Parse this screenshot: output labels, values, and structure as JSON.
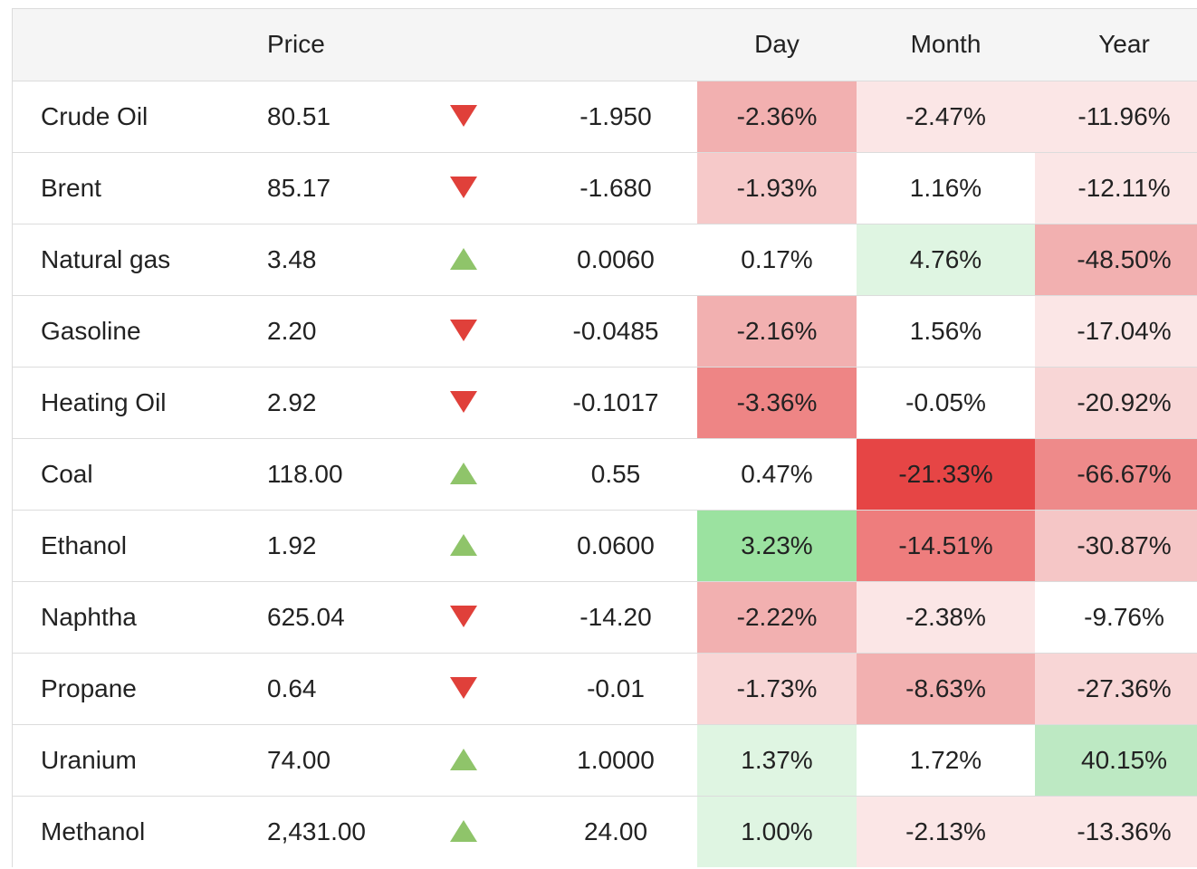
{
  "header": {
    "price": "Price",
    "day": "Day",
    "month": "Month",
    "year": "Year"
  },
  "rows": [
    {
      "name": "Crude Oil",
      "price": "80.51",
      "dir": "down",
      "change": "-1.950",
      "day": {
        "text": "-2.36%",
        "bg": "#f2b0b0"
      },
      "month": {
        "text": "-2.47%",
        "bg": "#fbe6e6"
      },
      "year": {
        "text": "-11.96%",
        "bg": "#fbe6e6"
      }
    },
    {
      "name": "Brent",
      "price": "85.17",
      "dir": "down",
      "change": "-1.680",
      "day": {
        "text": "-1.93%",
        "bg": "#f6c9c9"
      },
      "month": {
        "text": "1.16%",
        "bg": "#ffffff"
      },
      "year": {
        "text": "-12.11%",
        "bg": "#fbe6e6"
      }
    },
    {
      "name": "Natural gas",
      "price": "3.48",
      "dir": "up",
      "change": "0.0060",
      "day": {
        "text": "0.17%",
        "bg": "#ffffff"
      },
      "month": {
        "text": "4.76%",
        "bg": "#dff5e2"
      },
      "year": {
        "text": "-48.50%",
        "bg": "#f2b0b0"
      }
    },
    {
      "name": "Gasoline",
      "price": "2.20",
      "dir": "down",
      "change": "-0.0485",
      "day": {
        "text": "-2.16%",
        "bg": "#f2b0b0"
      },
      "month": {
        "text": "1.56%",
        "bg": "#ffffff"
      },
      "year": {
        "text": "-17.04%",
        "bg": "#fbe6e6"
      }
    },
    {
      "name": "Heating Oil",
      "price": "2.92",
      "dir": "down",
      "change": "-0.1017",
      "day": {
        "text": "-3.36%",
        "bg": "#ee8585"
      },
      "month": {
        "text": "-0.05%",
        "bg": "#ffffff"
      },
      "year": {
        "text": "-20.92%",
        "bg": "#f8d6d6"
      }
    },
    {
      "name": "Coal",
      "price": "118.00",
      "dir": "up",
      "change": "0.55",
      "day": {
        "text": "0.47%",
        "bg": "#ffffff"
      },
      "month": {
        "text": "-21.33%",
        "bg": "#e64545"
      },
      "year": {
        "text": "-66.67%",
        "bg": "#ee8a8a"
      }
    },
    {
      "name": "Ethanol",
      "price": "1.92",
      "dir": "up",
      "change": "0.0600",
      "day": {
        "text": "3.23%",
        "bg": "#9be2a0"
      },
      "month": {
        "text": "-14.51%",
        "bg": "#ee7d7d"
      },
      "year": {
        "text": "-30.87%",
        "bg": "#f5c6c6"
      }
    },
    {
      "name": "Naphtha",
      "price": "625.04",
      "dir": "down",
      "change": "-14.20",
      "day": {
        "text": "-2.22%",
        "bg": "#f2b0b0"
      },
      "month": {
        "text": "-2.38%",
        "bg": "#fbe6e6"
      },
      "year": {
        "text": "-9.76%",
        "bg": "#ffffff"
      }
    },
    {
      "name": "Propane",
      "price": "0.64",
      "dir": "down",
      "change": "-0.01",
      "day": {
        "text": "-1.73%",
        "bg": "#f8d6d6"
      },
      "month": {
        "text": "-8.63%",
        "bg": "#f2b0b0"
      },
      "year": {
        "text": "-27.36%",
        "bg": "#f8d6d6"
      }
    },
    {
      "name": "Uranium",
      "price": "74.00",
      "dir": "up",
      "change": "1.0000",
      "day": {
        "text": "1.37%",
        "bg": "#dff5e2"
      },
      "month": {
        "text": "1.72%",
        "bg": "#ffffff"
      },
      "year": {
        "text": "40.15%",
        "bg": "#bde9c3"
      }
    },
    {
      "name": "Methanol",
      "price": "2,431.00",
      "dir": "up",
      "change": "24.00",
      "day": {
        "text": "1.00%",
        "bg": "#dff5e2"
      },
      "month": {
        "text": "-2.13%",
        "bg": "#fbe6e6"
      },
      "year": {
        "text": "-13.36%",
        "bg": "#fbe6e6"
      }
    }
  ]
}
